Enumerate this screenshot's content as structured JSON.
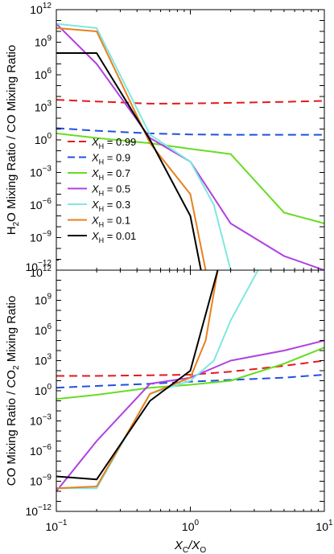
{
  "chart_data": [
    {
      "type": "line",
      "ylabel_parts": {
        "a": "H",
        "a_sub": "2",
        "b": "O Mixing Ratio / CO Mixing Ratio"
      },
      "xscale": "log",
      "yscale": "log",
      "xlim": [
        0.1,
        10
      ],
      "ylim": [
        1e-12,
        1000000000000.0
      ],
      "x_ticks": [
        {
          "v": 0.1,
          "label": "10",
          "exp": "−1"
        },
        {
          "v": 1,
          "label": "10",
          "exp": "0"
        },
        {
          "v": 10,
          "label": "10",
          "exp": "1"
        }
      ],
      "y_ticks": [
        {
          "v": 1000000000000.0,
          "label": "10",
          "exp": "12"
        },
        {
          "v": 1000000000.0,
          "label": "10",
          "exp": "9"
        },
        {
          "v": 1000000.0,
          "label": "10",
          "exp": "6"
        },
        {
          "v": 1000.0,
          "label": "10",
          "exp": "3"
        },
        {
          "v": 1,
          "label": "10",
          "exp": "0"
        },
        {
          "v": 0.001,
          "label": "10",
          "exp": "−3"
        },
        {
          "v": 1e-06,
          "label": "10",
          "exp": "−6"
        },
        {
          "v": 1e-09,
          "label": "10",
          "exp": "−9"
        },
        {
          "v": 1e-12,
          "label": "10",
          "exp": "−12"
        }
      ],
      "legend_placement": "lower-left",
      "grid": false,
      "series": [
        {
          "name": "0.99",
          "color": "#e31a1c",
          "dash": true,
          "x": [
            0.1,
            0.2,
            0.5,
            0.7,
            1,
            2,
            5,
            10
          ],
          "y": [
            5000.0,
            3500.0,
            2200.0,
            2200.0,
            2300.0,
            2600.0,
            3200.0,
            4000.0
          ]
        },
        {
          "name": "0.9",
          "color": "#2250e0",
          "dash": true,
          "x": [
            0.1,
            0.2,
            0.5,
            1,
            2,
            5,
            10
          ],
          "y": [
            12,
            7,
            4,
            3.2,
            3,
            3,
            3
          ]
        },
        {
          "name": "0.7",
          "color": "#66dd22",
          "dash": false,
          "x": [
            0.1,
            0.2,
            0.5,
            1,
            2,
            5,
            10
          ],
          "y": [
            4,
            1.5,
            0.5,
            0.15,
            0.05,
            2e-07,
            2e-08
          ]
        },
        {
          "name": "0.5",
          "color": "#b040e0",
          "dash": false,
          "x": [
            0.1,
            0.2,
            0.5,
            1,
            2,
            5,
            10
          ],
          "y": [
            50000000000.0,
            10000000.0,
            1.5,
            0.01,
            2e-08,
            2e-11,
            1e-12
          ]
        },
        {
          "name": "0.3",
          "color": "#7ee8e0",
          "dash": false,
          "x": [
            0.1,
            0.2,
            0.5,
            1,
            1.5,
            2
          ],
          "y": [
            50000000000.0,
            20000000000.0,
            3,
            0.01,
            1e-06,
            1e-12
          ]
        },
        {
          "name": "0.1",
          "color": "#e8801e",
          "dash": false,
          "x": [
            0.1,
            0.2,
            0.5,
            1,
            1.3
          ],
          "y": [
            20000000000.0,
            10000000000.0,
            0.5,
            1e-05,
            1e-12
          ]
        },
        {
          "name": "0.01",
          "color": "#000000",
          "dash": false,
          "x": [
            0.1,
            0.2,
            0.5,
            1,
            1.2
          ],
          "y": [
            100000000.0,
            100000000.0,
            1,
            1e-07,
            1e-12
          ]
        }
      ]
    },
    {
      "type": "line",
      "ylabel_parts": {
        "a": "CO Mixing Ratio / CO",
        "a_sub": "2",
        "b": " Mixing Ratio"
      },
      "xlabel_parts": {
        "a": "X",
        "a_sub": "C",
        "mid": "/X",
        "b_sub": "O"
      },
      "xscale": "log",
      "yscale": "log",
      "xlim": [
        0.1,
        10
      ],
      "ylim": [
        1e-12,
        1000000000000.0
      ],
      "x_ticks": [
        {
          "v": 0.1,
          "label": "10",
          "exp": "−1"
        },
        {
          "v": 1,
          "label": "10",
          "exp": "0"
        },
        {
          "v": 10,
          "label": "10",
          "exp": "1"
        }
      ],
      "y_ticks": [
        {
          "v": 1000000000000.0,
          "label": "10",
          "exp": "12"
        },
        {
          "v": 1000000000.0,
          "label": "10",
          "exp": "9"
        },
        {
          "v": 1000000.0,
          "label": "10",
          "exp": "6"
        },
        {
          "v": 1000.0,
          "label": "10",
          "exp": "3"
        },
        {
          "v": 1,
          "label": "10",
          "exp": "0"
        },
        {
          "v": 0.001,
          "label": "10",
          "exp": "−3"
        },
        {
          "v": 1e-06,
          "label": "10",
          "exp": "−6"
        },
        {
          "v": 1e-09,
          "label": "10",
          "exp": "−9"
        },
        {
          "v": 1e-12,
          "label": "10",
          "exp": "−12"
        }
      ],
      "grid": false,
      "series": [
        {
          "name": "0.99",
          "color": "#e31a1c",
          "dash": true,
          "x": [
            0.1,
            0.2,
            0.5,
            1,
            2,
            5,
            10
          ],
          "y": [
            30,
            30,
            35,
            40,
            80,
            300,
            1000
          ]
        },
        {
          "name": "0.9",
          "color": "#2250e0",
          "dash": true,
          "x": [
            0.1,
            0.2,
            0.5,
            1,
            2,
            5,
            10
          ],
          "y": [
            2,
            3,
            5,
            8,
            12,
            20,
            40
          ]
        },
        {
          "name": "0.7",
          "color": "#66dd22",
          "dash": false,
          "x": [
            0.1,
            0.2,
            0.5,
            1,
            2,
            5,
            10
          ],
          "y": [
            0.15,
            0.4,
            2,
            4,
            10,
            500,
            20000.0
          ]
        },
        {
          "name": "0.5",
          "color": "#b040e0",
          "dash": false,
          "x": [
            0.1,
            0.2,
            0.5,
            1,
            2,
            5,
            10
          ],
          "y": [
            1e-10,
            1e-05,
            5,
            20,
            1000.0,
            10000.0,
            100000.0
          ]
        },
        {
          "name": "0.3",
          "color": "#7ee8e0",
          "dash": false,
          "x": [
            0.1,
            0.2,
            0.5,
            1,
            1.5,
            2,
            3.2
          ],
          "y": [
            2e-10,
            2e-10,
            0.5,
            10,
            1000.0,
            10000000.0,
            1000000000000.0
          ]
        },
        {
          "name": "0.1",
          "color": "#e8801e",
          "dash": false,
          "x": [
            0.1,
            0.2,
            0.5,
            1,
            1.3,
            1.6
          ],
          "y": [
            2e-10,
            3e-10,
            0.5,
            20,
            100000.0,
            1000000000000.0
          ]
        },
        {
          "name": "0.01",
          "color": "#000000",
          "dash": false,
          "x": [
            0.1,
            0.2,
            0.5,
            1,
            1.6
          ],
          "y": [
            3e-09,
            1.5e-09,
            0.1,
            100,
            1000000000000.0
          ]
        }
      ]
    }
  ],
  "legend_symbol": {
    "letter": "X",
    "sub": "H",
    "eq": " = "
  }
}
